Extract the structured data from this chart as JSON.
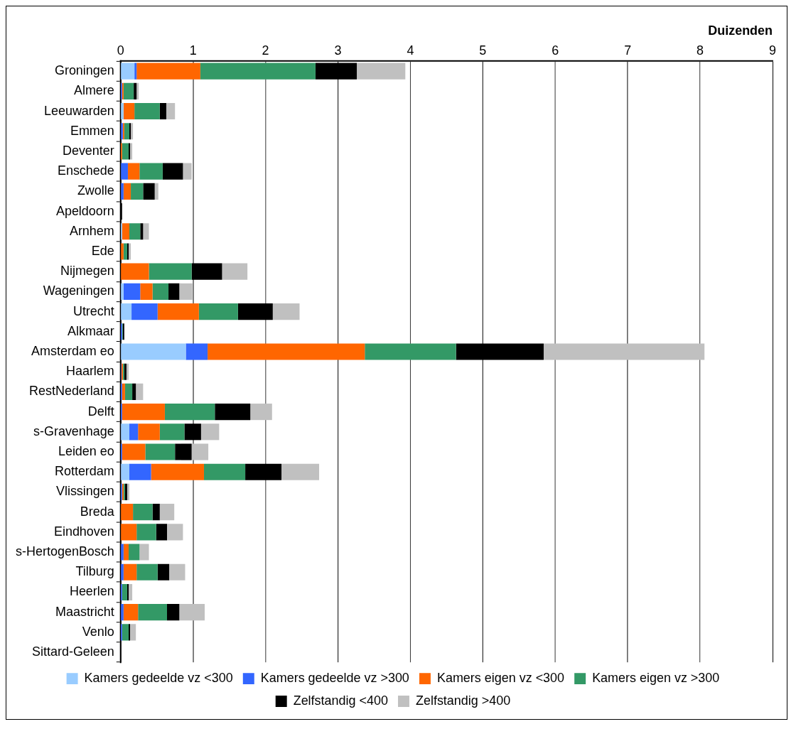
{
  "chart_data": {
    "type": "bar",
    "orientation": "horizontal",
    "stacked": true,
    "xlabel": "Duizenden",
    "categories": [
      "Groningen",
      "Almere",
      "Leeuwarden",
      "Emmen",
      "Deventer",
      "Enschede",
      "Zwolle",
      "Apeldoorn",
      "Arnhem",
      "Ede",
      "Nijmegen",
      "Wageningen",
      "Utrecht",
      "Alkmaar",
      "Amsterdam eo",
      "Haarlem",
      "RestNederland",
      "Delft",
      "s-Gravenhage",
      "Leiden eo",
      "Rotterdam",
      "Vlissingen",
      "Breda",
      "Eindhoven",
      "s-HertogenBosch",
      "Tilburg",
      "Heerlen",
      "Maastricht",
      "Venlo",
      "Sittard-Geleen"
    ],
    "series": [
      {
        "name": "Kamers gedeelde vz <300",
        "color": "#99ccff",
        "values": [
          0.19,
          null,
          0.04,
          0,
          0,
          0,
          0,
          0,
          0.02,
          0,
          0,
          0.04,
          0.15,
          null,
          0.9,
          null,
          0,
          0,
          0.12,
          0,
          0.12,
          0,
          0,
          0,
          0,
          0,
          0,
          0,
          0,
          0
        ]
      },
      {
        "name": "Kamers gedeelde vz >300",
        "color": "#3366ff",
        "values": [
          0.03,
          0.02,
          0,
          0.03,
          0,
          0.1,
          0.04,
          0,
          0,
          0,
          0,
          0.23,
          0.36,
          0.02,
          0.3,
          0.01,
          0.02,
          0.02,
          0.12,
          0.02,
          0.3,
          0.02,
          0,
          0,
          0.04,
          0.04,
          0.02,
          0.04,
          0.02,
          0
        ]
      },
      {
        "name": "Kamers eigen vz <300",
        "color": "#ff6600",
        "values": [
          0.88,
          0.02,
          0.15,
          0.02,
          0.02,
          0.16,
          0.1,
          0,
          0.1,
          0.04,
          0.39,
          0.17,
          0.57,
          0,
          2.17,
          0.02,
          0.04,
          0.59,
          0.3,
          0.32,
          0.73,
          0.02,
          0.17,
          0.22,
          0.07,
          0.18,
          0,
          0.2,
          0,
          0
        ]
      },
      {
        "name": "Kamers eigen vz >300",
        "color": "#339966",
        "values": [
          1.59,
          0.14,
          0.35,
          0.07,
          0.09,
          0.32,
          0.17,
          0,
          0.15,
          0.05,
          0.59,
          0.22,
          0.54,
          0.01,
          1.26,
          0.02,
          0.1,
          0.69,
          0.34,
          0.41,
          0.57,
          0.02,
          0.27,
          0.27,
          0.15,
          0.29,
          0.07,
          0.4,
          0.09,
          0
        ]
      },
      {
        "name": "Zelfstandig <400",
        "color": "#000000",
        "values": [
          0.57,
          0.04,
          0.09,
          0.02,
          0.02,
          0.28,
          0.16,
          0.02,
          0.04,
          0.02,
          0.42,
          0.15,
          0.48,
          0.02,
          1.21,
          0.03,
          0.05,
          0.49,
          0.23,
          0.23,
          0.5,
          0.03,
          0.1,
          0.15,
          0,
          0.16,
          0.02,
          0.17,
          0.02,
          0
        ]
      },
      {
        "name": "Zelfstandig >400",
        "color": "#c0c0c0",
        "values": [
          0.67,
          0.03,
          0.12,
          0.03,
          0.03,
          0.12,
          0.05,
          0,
          0.08,
          0.03,
          0.35,
          0.18,
          0.37,
          0,
          2.22,
          0.03,
          0.1,
          0.3,
          0.25,
          0.23,
          0.52,
          0.03,
          0.2,
          0.22,
          0.13,
          0.22,
          0.05,
          0.35,
          0.08,
          0
        ]
      }
    ],
    "xlim": [
      0,
      9
    ],
    "xticks": [
      0,
      1,
      2,
      3,
      4,
      5,
      6,
      7,
      8,
      9
    ],
    "grid": "x",
    "legend": "bottom"
  }
}
